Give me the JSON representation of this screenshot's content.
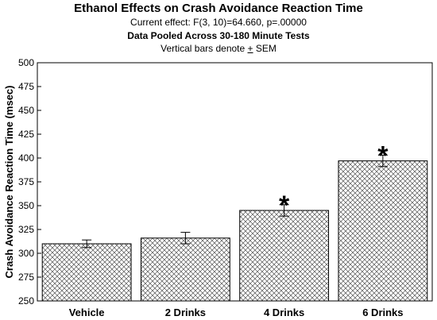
{
  "chart_data": {
    "type": "bar",
    "title": "Ethanol Effects on Crash Avoidance Reaction Time",
    "subtitle_effect": "Current effect: F(3, 10)=64.660, p=.00000",
    "subtitle_pooled": "Data Pooled Across 30-180 Minute Tests",
    "subtitle_sem_prefix": "Vertical bars denote ",
    "subtitle_sem_pm": "+",
    "subtitle_sem_suffix": " SEM",
    "xlabel": "",
    "ylabel": "Crash Avoidance Reaction Time (msec)",
    "ylim": [
      250,
      500
    ],
    "yticks": [
      "250",
      "275",
      "300",
      "325",
      "350",
      "375",
      "400",
      "425",
      "450",
      "475",
      "500"
    ],
    "categories": [
      "Vehicle",
      "2 Drinks",
      "4 Drinks",
      "6 Drinks"
    ],
    "values": [
      310,
      316,
      345,
      397
    ],
    "sem": [
      4,
      6,
      6,
      6
    ],
    "significance_marker": "*",
    "significant": [
      false,
      false,
      true,
      true
    ],
    "grid": false,
    "bar_fill": "crosshatch"
  }
}
